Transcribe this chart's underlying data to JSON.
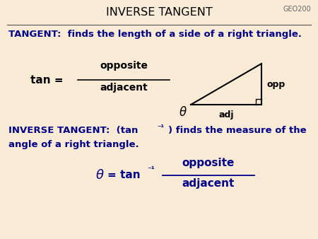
{
  "background_color": "#faebd7",
  "title": "INVERSE TANGENT",
  "title_color": "#000000",
  "geo200_label": "GEO200",
  "tangent_text": "TANGENT:  finds the length of a side of a right triangle.",
  "blue": "#00008B",
  "black": "#000000",
  "gray": "#888888"
}
